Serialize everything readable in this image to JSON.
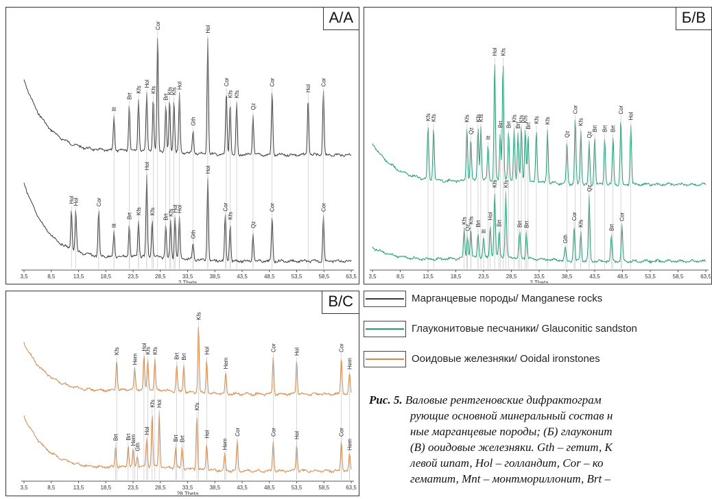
{
  "panels": {
    "a": {
      "tag": "А/А",
      "xlabel": "2 Theta",
      "ticks": [
        "3,5",
        "8,5",
        "13,5",
        "18,5",
        "23,5",
        "28,5",
        "33,5",
        "38,5",
        "43,5",
        "48,5",
        "53,5",
        "58,5",
        "63,5"
      ],
      "color": "#3a3a3a",
      "upper_peaks": [
        [
          "Ilt",
          20.0
        ],
        [
          "Brt",
          22.8
        ],
        [
          "Kfs",
          24.5
        ],
        [
          "Hol",
          26.0
        ],
        [
          "Kfs",
          27.2
        ],
        [
          "Cor",
          28.0
        ],
        [
          "Brt",
          29.5
        ],
        [
          "Kfs",
          30.2
        ],
        [
          "Kfs",
          31.0
        ],
        [
          "Hol",
          32.0
        ],
        [
          "Gth",
          34.5
        ],
        [
          "Hol",
          37.2
        ],
        [
          "Cor",
          40.6
        ],
        [
          "Kfs",
          41.3
        ],
        [
          "Kfs",
          42.5
        ],
        [
          "Qz",
          45.5
        ],
        [
          "Cor",
          49.0
        ],
        [
          "Hol",
          55.6
        ],
        [
          "Cor",
          58.4
        ]
      ],
      "lower_peaks": [
        [
          "Hol",
          12.2
        ],
        [
          "Hol",
          13.0
        ],
        [
          "Cor",
          17.2
        ],
        [
          "Ilt",
          20.0
        ],
        [
          "Brt",
          22.8
        ],
        [
          "Kfs",
          24.5
        ],
        [
          "Hol",
          26.0
        ],
        [
          "Kfs",
          27.0
        ],
        [
          "Brt",
          29.5
        ],
        [
          "Kfs",
          30.4
        ],
        [
          "Hol",
          31.2
        ],
        [
          "Hol",
          32.0
        ],
        [
          "Gth",
          34.5
        ],
        [
          "Hol",
          37.2
        ],
        [
          "Cor",
          40.4
        ],
        [
          "Kfs",
          41.3
        ],
        [
          "Qz",
          45.5
        ],
        [
          "Cor",
          49.0
        ],
        [
          "Cor",
          58.4
        ]
      ]
    },
    "b": {
      "tag": "Б/В",
      "xlabel": "2 Theta",
      "ticks": [
        "3,5",
        "8,5",
        "13,5",
        "18,5",
        "23,5",
        "28,5",
        "33,5",
        "38,5",
        "43,5",
        "48,5",
        "53,5",
        "58,5",
        "63,5"
      ],
      "color": "#1f9a74",
      "upper_peaks": [
        [
          "Kfs",
          13.5
        ],
        [
          "Kfs",
          14.5
        ],
        [
          "Kfs",
          20.5
        ],
        [
          "Qz",
          21.2
        ],
        [
          "Kfs",
          22.5
        ],
        [
          "Kfs",
          23.0
        ],
        [
          "Ilt",
          24.3
        ],
        [
          "Hol",
          25.5
        ],
        [
          "Brt",
          26.5
        ],
        [
          "Kfs",
          27.0
        ],
        [
          "Brt",
          28.0
        ],
        [
          "Kfs",
          29.0
        ],
        [
          "Brt",
          29.7
        ],
        [
          "Kfs",
          30.3
        ],
        [
          "Kfs",
          31.0
        ],
        [
          "Brt",
          31.5
        ],
        [
          "Kfs",
          33.0
        ],
        [
          "Kfs",
          35.0
        ],
        [
          "Qz",
          38.5
        ],
        [
          "Cor",
          40.0
        ],
        [
          "Kfs",
          41.0
        ],
        [
          "Qz",
          42.5
        ],
        [
          "Brt",
          43.5
        ],
        [
          "Brt",
          45.3
        ],
        [
          "Brt",
          46.8
        ],
        [
          "Cor",
          48.2
        ],
        [
          "Hol",
          50.0
        ]
      ],
      "lower_peaks": [
        [
          "Kfs",
          20.0
        ],
        [
          "Qz",
          20.6
        ],
        [
          "Kfs",
          21.2
        ],
        [
          "Brt",
          22.5
        ],
        [
          "Ilt",
          23.5
        ],
        [
          "Hol",
          24.7
        ],
        [
          "Kfs",
          25.5
        ],
        [
          "Brt",
          26.3
        ],
        [
          "Kfs",
          27.5
        ],
        [
          "Brt",
          30.0
        ],
        [
          "Brt",
          31.2
        ],
        [
          "Gth",
          38.2
        ],
        [
          "Cor",
          39.8
        ],
        [
          "Kfs",
          41.0
        ],
        [
          "Qz",
          42.5
        ],
        [
          "Brt",
          46.5
        ],
        [
          "Cor",
          48.4
        ]
      ]
    },
    "c": {
      "tag": "В/С",
      "xlabel": "2θ Theta",
      "ticks": [
        "3,5",
        "8,5",
        "13,5",
        "18,5",
        "23,5",
        "28,5",
        "33,5",
        "38,5",
        "43,5",
        "48,5",
        "53,5",
        "58,5",
        "63,5"
      ],
      "color": "#d2874a",
      "upper_peaks": [
        [
          "Kfs",
          20.5
        ],
        [
          "Hem",
          23.8
        ],
        [
          "Hol",
          25.5
        ],
        [
          "Kfs",
          26.2
        ],
        [
          "Kfs",
          27.5
        ],
        [
          "Brt",
          31.5
        ],
        [
          "Brt",
          32.8
        ],
        [
          "Kfs",
          35.5
        ],
        [
          "Hol",
          37.0
        ],
        [
          "Hem",
          40.5
        ],
        [
          "Cor",
          49.2
        ],
        [
          "Hol",
          53.5
        ],
        [
          "Cor",
          61.7
        ],
        [
          "Hem",
          63.2
        ]
      ],
      "lower_peaks": [
        [
          "Brt",
          20.3
        ],
        [
          "Brt",
          22.6
        ],
        [
          "Hem",
          23.5
        ],
        [
          "Gth",
          24.3
        ],
        [
          "Hol",
          26.0
        ],
        [
          "Kfs",
          27.0
        ],
        [
          "Hol",
          28.3
        ],
        [
          "Brt",
          31.3
        ],
        [
          "Brt",
          32.5
        ],
        [
          "Kfs",
          35.2
        ],
        [
          "Hol",
          37.0
        ],
        [
          "Hem",
          40.3
        ],
        [
          "Cor",
          42.6
        ],
        [
          "Cor",
          49.2
        ],
        [
          "Hol",
          53.5
        ],
        [
          "Cor",
          61.7
        ],
        [
          "Hem",
          63.2
        ]
      ]
    }
  },
  "legend": [
    {
      "label": "Марганцевые породы/ Manganese rocks",
      "color": "#3a3a3a"
    },
    {
      "label": "Глауконитовые песчаники/ Glauconitic sandston",
      "color": "#1f9a74"
    },
    {
      "label": "Ооидовые железняки/ Ooidal ironstones",
      "color": "#d2874a"
    }
  ],
  "caption": {
    "fig": "Рис. 5.",
    "line1": "Валовые рентгеновские дифрактограм",
    "line2": "рующие основной минеральный состав н",
    "line3": "ные марганцевые породы; (Б) глауконит",
    "line4": "(В) ооидовые железняки. Gth – гетит, К",
    "line5": "левой шпат, Hol – голландит, Cor – ко",
    "line6": "гематит, Mnt – монтмориллонит, Brt –"
  },
  "chart_data": [
    {
      "type": "line",
      "panel": "А/А",
      "xlabel": "2 Theta",
      "xlim": [
        3.5,
        63.5
      ],
      "series": [
        {
          "name": "Марганцевые породы/ Manganese rocks",
          "peaks": [
            "Ilt",
            "Brt",
            "Kfs",
            "Hol",
            "Cor",
            "Gth",
            "Qz"
          ]
        },
        {
          "name": "Марганцевые породы/ Manganese rocks",
          "peaks": [
            "Hol",
            "Cor",
            "Ilt",
            "Brt",
            "Kfs",
            "Gth",
            "Qz"
          ]
        }
      ]
    },
    {
      "type": "line",
      "panel": "Б/В",
      "xlabel": "2 Theta",
      "xlim": [
        3.5,
        63.5
      ],
      "series": [
        {
          "name": "Глауконитовые песчаники/ Glauconitic sandston",
          "peaks": [
            "Kfs",
            "Qz",
            "Ilt",
            "Hol",
            "Brt",
            "Cor"
          ]
        },
        {
          "name": "Глауконитовые песчаники/ Glauconitic sandston",
          "peaks": [
            "Kfs",
            "Qz",
            "Brt",
            "Ilt",
            "Hol",
            "Gth",
            "Cor"
          ]
        }
      ]
    },
    {
      "type": "line",
      "panel": "В/С",
      "xlabel": "2θ Theta",
      "xlim": [
        3.5,
        63.5
      ],
      "series": [
        {
          "name": "Ооидовые железняки/ Ooidal ironstones",
          "peaks": [
            "Kfs",
            "Hem",
            "Hol",
            "Brt",
            "Cor"
          ]
        },
        {
          "name": "Ооидовые железняки/ Ooidal ironstones",
          "peaks": [
            "Brt",
            "Hem",
            "Gth",
            "Hol",
            "Kfs",
            "Cor"
          ]
        }
      ]
    }
  ]
}
